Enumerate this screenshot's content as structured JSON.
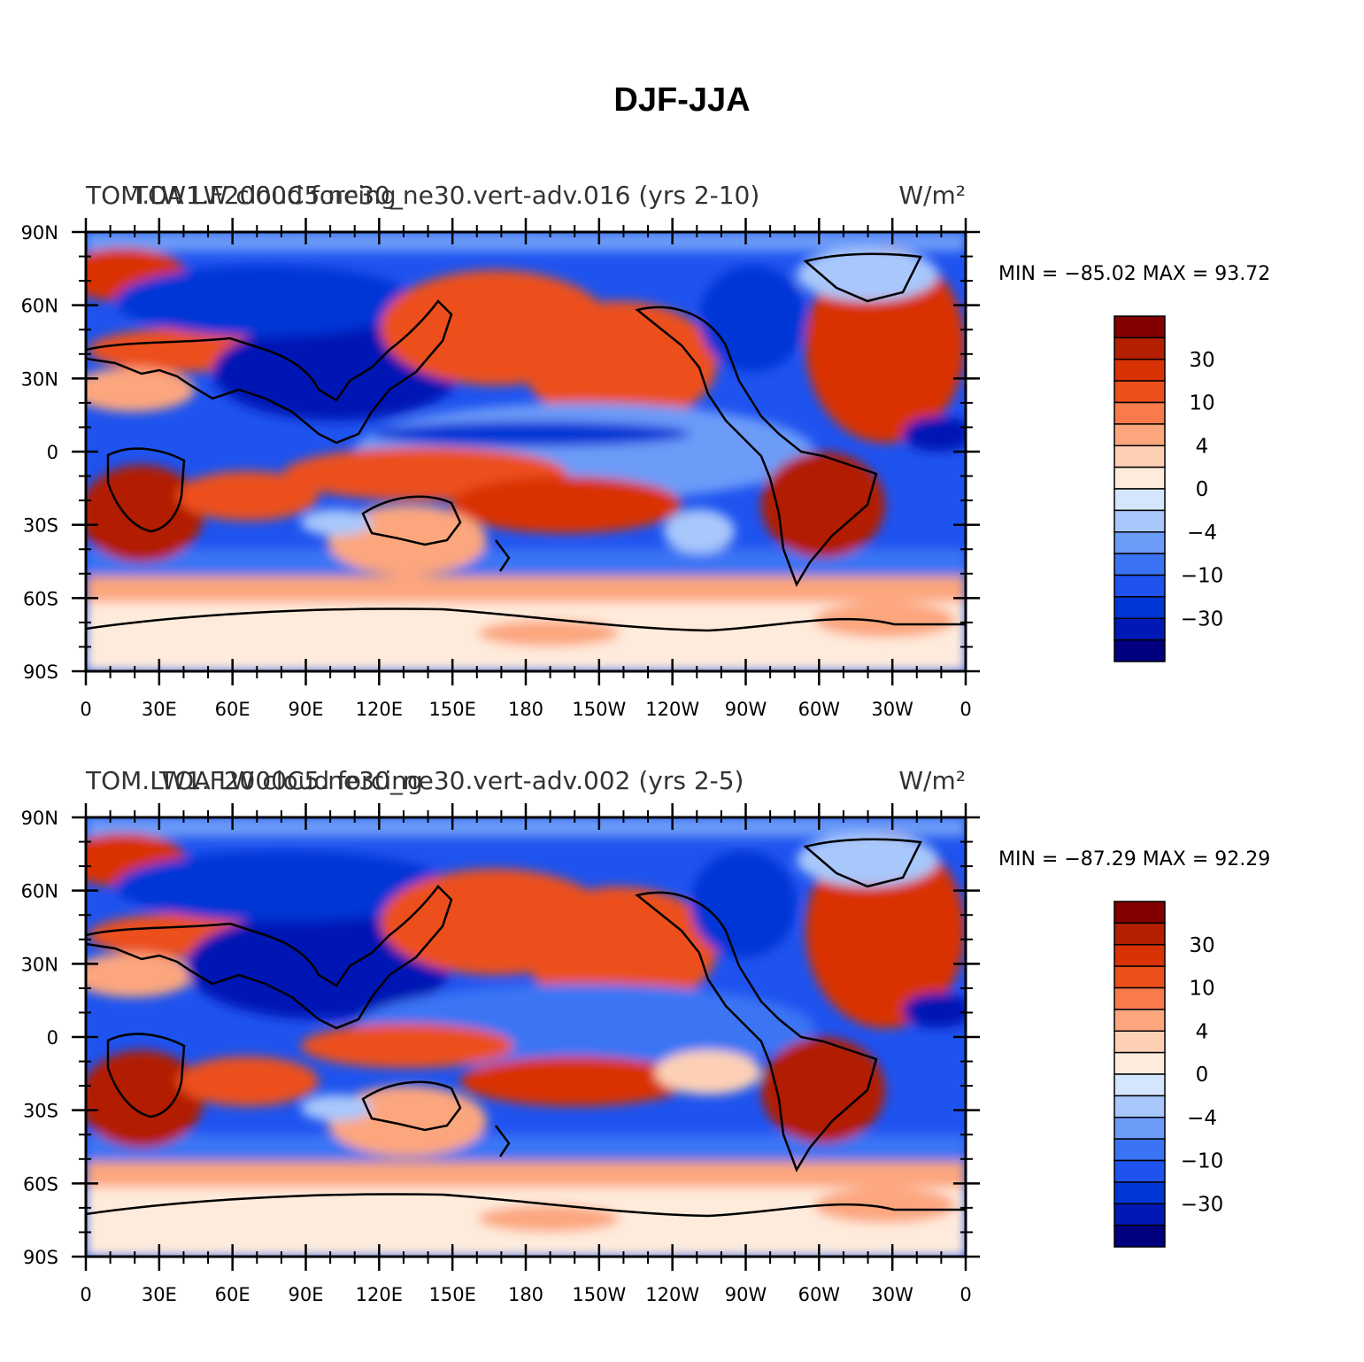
{
  "title": "DJF-JJA",
  "lat_labels": [
    "90N",
    "60N",
    "30N",
    "0",
    "30S",
    "60S",
    "90S"
  ],
  "lon_labels": [
    "0",
    "30E",
    "60E",
    "90E",
    "120E",
    "150E",
    "180",
    "150W",
    "120W",
    "90W",
    "60W",
    "30W",
    "0"
  ],
  "colorbar": {
    "colors": [
      "#00007f",
      "#0018b4",
      "#0036d6",
      "#1e53ef",
      "#3a74f4",
      "#6c9bf8",
      "#a8c7fb",
      "#d4e6fd",
      "#feebdc",
      "#fdd0b5",
      "#fca67e",
      "#f97a4a",
      "#ec4f1a",
      "#d93205",
      "#b21f01",
      "#820000"
    ],
    "labels": [
      "30",
      "10",
      "4",
      "0",
      "−4",
      "−10",
      "−30"
    ]
  },
  "panels": [
    {
      "left_title": "TOM.LW1.F2000C5.ne30_ne30.vert-adv.016 (yrs 2-10)",
      "center_title": "TOA LW cloud forcing",
      "units": "W/m²",
      "min_max": "MIN = −85.02 MAX =  93.72"
    },
    {
      "left_title": "TOM.LW1.F2000C5.ne30_ne30.vert-adv.002 (yrs 2-5)",
      "center_title": "TOA LW cloud forcing",
      "units": "W/m²",
      "min_max": "MIN = −87.29 MAX =  92.29"
    }
  ]
}
